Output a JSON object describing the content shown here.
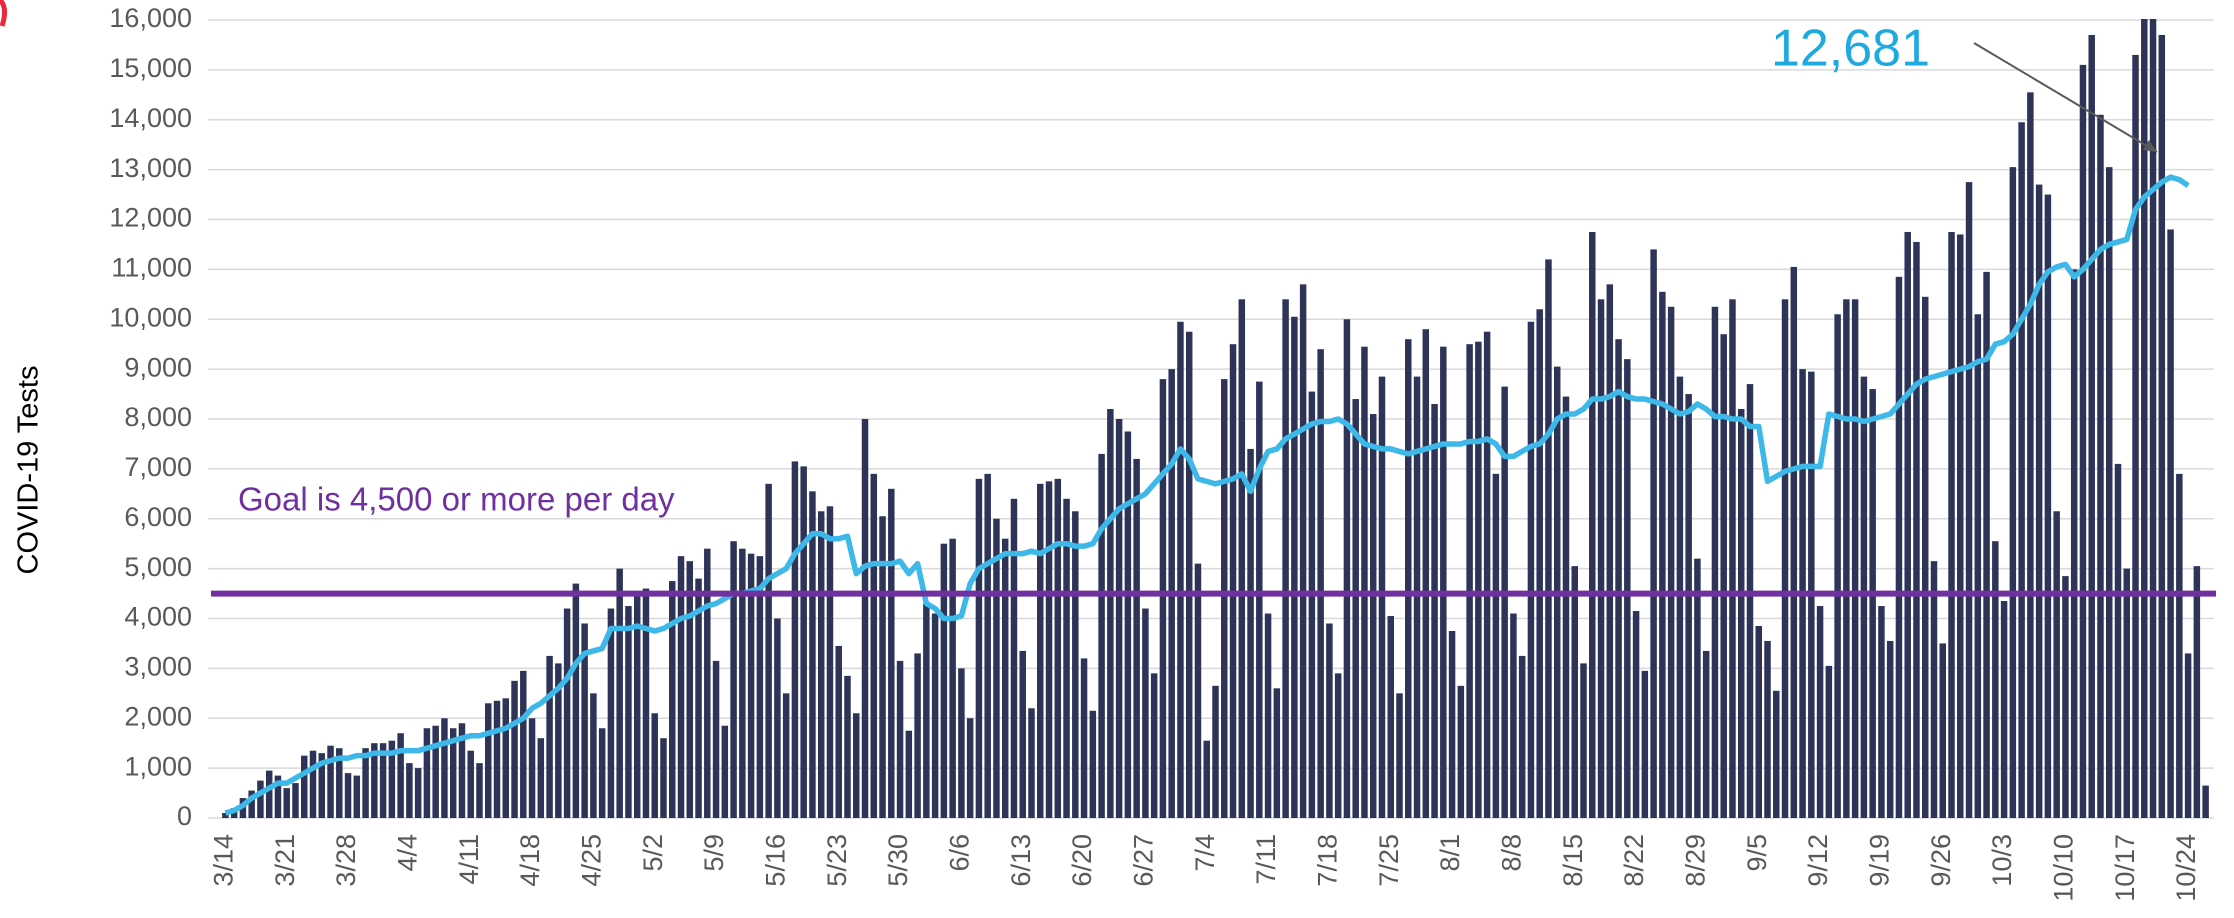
{
  "chart_data": {
    "type": "bar",
    "y_label": "COVID-19 Tests",
    "categories": [
      "3/14",
      null,
      null,
      null,
      null,
      null,
      null,
      "3/21",
      null,
      null,
      null,
      null,
      null,
      null,
      "3/28",
      null,
      null,
      null,
      null,
      null,
      null,
      "4/4",
      null,
      null,
      null,
      null,
      null,
      null,
      "4/11",
      null,
      null,
      null,
      null,
      null,
      null,
      "4/18",
      null,
      null,
      null,
      null,
      null,
      null,
      "4/25",
      null,
      null,
      null,
      null,
      null,
      null,
      "5/2",
      null,
      null,
      null,
      null,
      null,
      null,
      "5/9",
      null,
      null,
      null,
      null,
      null,
      null,
      "5/16",
      null,
      null,
      null,
      null,
      null,
      null,
      "5/23",
      null,
      null,
      null,
      null,
      null,
      null,
      "5/30",
      null,
      null,
      null,
      null,
      null,
      null,
      "6/6",
      null,
      null,
      null,
      null,
      null,
      null,
      "6/13",
      null,
      null,
      null,
      null,
      null,
      null,
      "6/20",
      null,
      null,
      null,
      null,
      null,
      null,
      "6/27",
      null,
      null,
      null,
      null,
      null,
      null,
      "7/4",
      null,
      null,
      null,
      null,
      null,
      null,
      "7/11",
      null,
      null,
      null,
      null,
      null,
      null,
      "7/18",
      null,
      null,
      null,
      null,
      null,
      null,
      "7/25",
      null,
      null,
      null,
      null,
      null,
      null,
      "8/1",
      null,
      null,
      null,
      null,
      null,
      null,
      "8/8",
      null,
      null,
      null,
      null,
      null,
      null,
      "8/15",
      null,
      null,
      null,
      null,
      null,
      null,
      "8/22",
      null,
      null,
      null,
      null,
      null,
      null,
      "8/29",
      null,
      null,
      null,
      null,
      null,
      null,
      "9/5",
      null,
      null,
      null,
      null,
      null,
      null,
      "9/12",
      null,
      null,
      null,
      null,
      null,
      null,
      "9/19",
      null,
      null,
      null,
      null,
      null,
      null,
      "9/26",
      null,
      null,
      null,
      null,
      null,
      null,
      "10/3",
      null,
      null,
      null,
      null,
      null,
      null,
      "10/10",
      null,
      null,
      null,
      null,
      null,
      null,
      "10/17",
      null,
      null,
      null,
      null,
      null,
      null,
      "10/24",
      null,
      null
    ],
    "series": [
      {
        "type": "bar",
        "color": "#2e3458",
        "values": [
          100,
          200,
          400,
          550,
          750,
          950,
          850,
          600,
          700,
          1250,
          1350,
          1300,
          1450,
          1400,
          900,
          850,
          1400,
          1500,
          1500,
          1550,
          1700,
          1100,
          1000,
          1800,
          1850,
          2000,
          1800,
          1900,
          1350,
          1100,
          2300,
          2350,
          2400,
          2750,
          2950,
          2000,
          1600,
          3250,
          3100,
          4200,
          4700,
          3900,
          2500,
          1800,
          4200,
          5000,
          4250,
          4500,
          4600,
          2100,
          1600,
          4750,
          5250,
          5150,
          4800,
          5400,
          3150,
          1850,
          5550,
          5400,
          5300,
          5250,
          6700,
          4000,
          2500,
          7150,
          7050,
          6550,
          6150,
          6250,
          3450,
          2850,
          2100,
          8000,
          6900,
          6050,
          6600,
          3150,
          1750,
          3300,
          4300,
          4100,
          5500,
          5600,
          3000,
          2000,
          6800,
          6900,
          6000,
          5600,
          6400,
          3350,
          2200,
          6700,
          6750,
          6800,
          6400,
          6150,
          3200,
          2150,
          7300,
          8200,
          8000,
          7750,
          7200,
          4200,
          2900,
          8800,
          9000,
          9950,
          9750,
          5100,
          1550,
          2650,
          8800,
          9500,
          10400,
          7400,
          8750,
          4100,
          2600,
          10400,
          10050,
          10700,
          8550,
          9400,
          3900,
          2900,
          10000,
          8400,
          9450,
          8100,
          8850,
          4050,
          2500,
          9600,
          8850,
          9800,
          8300,
          9450,
          3750,
          2650,
          9500,
          9550,
          9750,
          6900,
          8650,
          4100,
          3250,
          9950,
          10200,
          11200,
          9050,
          8450,
          5050,
          3100,
          11750,
          10400,
          10700,
          9600,
          9200,
          4150,
          2950,
          11400,
          10550,
          10250,
          8850,
          8500,
          5200,
          3350,
          10250,
          9700,
          10400,
          8200,
          8700,
          3850,
          3550,
          2550,
          10400,
          11050,
          9000,
          8950,
          4250,
          3050,
          10100,
          10400,
          10400,
          8850,
          8600,
          4250,
          3550,
          10850,
          11750,
          11550,
          10450,
          5150,
          3500,
          11750,
          11700,
          12750,
          10100,
          10950,
          5550,
          4350,
          13050,
          13950,
          14550,
          12700,
          12500,
          6150,
          4850,
          11000,
          15100,
          15700,
          14100,
          13050,
          7100,
          5000,
          15300,
          16500,
          16600,
          15700,
          11800,
          6900,
          3300,
          5050,
          650
        ]
      },
      {
        "type": "line",
        "color": "#3db8e8",
        "values": [
          100,
          150,
          250,
          400,
          500,
          600,
          700,
          700,
          800,
          900,
          1000,
          1100,
          1150,
          1200,
          1200,
          1250,
          1250,
          1300,
          1300,
          1300,
          1350,
          1350,
          1350,
          1400,
          1450,
          1500,
          1550,
          1600,
          1650,
          1650,
          1700,
          1750,
          1800,
          1900,
          2000,
          2200,
          2300,
          2450,
          2600,
          2800,
          3100,
          3300,
          3350,
          3400,
          3800,
          3800,
          3800,
          3850,
          3800,
          3750,
          3800,
          3900,
          4000,
          4050,
          4150,
          4250,
          4300,
          4400,
          4500,
          4500,
          4550,
          4600,
          4800,
          4900,
          5000,
          5300,
          5500,
          5700,
          5700,
          5600,
          5600,
          5650,
          4900,
          5050,
          5100,
          5100,
          5100,
          5150,
          4900,
          5100,
          4300,
          4200,
          4000,
          4000,
          4050,
          4700,
          5000,
          5100,
          5200,
          5300,
          5300,
          5300,
          5350,
          5300,
          5400,
          5500,
          5500,
          5450,
          5450,
          5500,
          5800,
          6000,
          6200,
          6300,
          6400,
          6500,
          6700,
          6900,
          7100,
          7400,
          7200,
          6800,
          6750,
          6700,
          6750,
          6800,
          6900,
          6550,
          7000,
          7350,
          7400,
          7600,
          7700,
          7800,
          7900,
          7950,
          7950,
          8000,
          7900,
          7700,
          7500,
          7450,
          7400,
          7400,
          7350,
          7300,
          7350,
          7400,
          7450,
          7500,
          7500,
          7500,
          7550,
          7550,
          7600,
          7500,
          7250,
          7250,
          7350,
          7450,
          7500,
          7700,
          8000,
          8100,
          8100,
          8200,
          8400,
          8400,
          8450,
          8550,
          8450,
          8400,
          8400,
          8350,
          8300,
          8200,
          8100,
          8150,
          8300,
          8200,
          8050,
          8050,
          8000,
          8000,
          7850,
          7850,
          6750,
          6850,
          6950,
          7000,
          7050,
          7050,
          7050,
          8100,
          8050,
          8000,
          8000,
          7950,
          8000,
          8050,
          8100,
          8300,
          8500,
          8700,
          8800,
          8850,
          8900,
          8950,
          9000,
          9050,
          9150,
          9200,
          9500,
          9550,
          9700,
          10000,
          10300,
          10700,
          10950,
          11050,
          11100,
          10850,
          11000,
          11200,
          11400,
          11500,
          11550,
          11600,
          12200,
          12450,
          12600,
          12750,
          12850,
          12800,
          12681,
          null,
          null
        ]
      }
    ],
    "reference_line": {
      "value": 4500,
      "label": "Goal is 4,500 or more per day",
      "color": "#7030a0"
    },
    "annotations": [
      {
        "text": "12,681",
        "color": "#1fa9e1"
      }
    ],
    "ylim": [
      0,
      16000
    ],
    "yticks": [
      0,
      {
        "value": 1000,
        "label": "1,000"
      },
      {
        "value": 2000,
        "label": "2,000"
      },
      {
        "value": 3000,
        "label": "3,000"
      },
      {
        "value": 4000,
        "label": "4,000"
      },
      {
        "value": 5000,
        "label": "5,000"
      },
      {
        "value": 6000,
        "label": "6,000"
      },
      {
        "value": 7000,
        "label": "7,000"
      },
      {
        "value": 8000,
        "label": "8,000"
      },
      {
        "value": 9000,
        "label": "9,000"
      },
      {
        "value": 10000,
        "label": "10,000"
      },
      {
        "value": 11000,
        "label": "11,000"
      },
      {
        "value": 12000,
        "label": "12,000"
      },
      {
        "value": 13000,
        "label": "13,000"
      },
      {
        "value": 14000,
        "label": "14,000"
      },
      {
        "value": 15000,
        "label": "15,000"
      },
      {
        "value": 16000,
        "label": "16,000"
      }
    ],
    "grid": true
  }
}
